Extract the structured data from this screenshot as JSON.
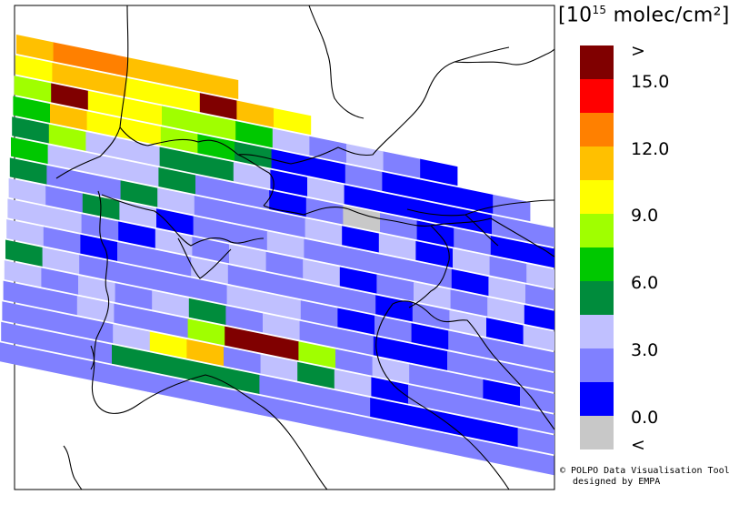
{
  "legend": {
    "unit_open": "[10",
    "unit_exp": "15",
    "unit_close": " molec/cm²]",
    "upper_marker": ">",
    "lower_marker": "<",
    "ticks": [
      "15.0",
      "12.0",
      "9.0",
      "6.0",
      "3.0",
      "0.0"
    ],
    "colors": [
      "#800000",
      "#ff0000",
      "#ff8000",
      "#ffc000",
      "#ffff00",
      "#a0ff00",
      "#00c800",
      "#008c3c",
      "#c0c0ff",
      "#8080ff",
      "#0000ff",
      "#c8c8c8"
    ]
  },
  "credit": {
    "line1": "© POLPO Data Visualisation Tool",
    "line2": "designed by EMPA"
  },
  "swath": {
    "rows": [
      [
        3,
        2,
        2,
        3,
        3,
        3
      ],
      [
        4,
        3,
        3,
        4,
        4,
        0,
        3,
        4
      ],
      [
        5,
        0,
        4,
        4,
        5,
        5,
        6,
        8,
        9,
        8,
        9,
        10
      ],
      [
        6,
        3,
        4,
        4,
        5,
        6,
        7,
        10,
        10,
        9,
        10,
        10,
        10,
        9
      ],
      [
        7,
        5,
        8,
        8,
        7,
        7,
        8,
        10,
        8,
        10,
        10,
        10,
        10,
        9,
        9
      ],
      [
        6,
        8,
        8,
        8,
        7,
        9,
        9,
        10,
        9,
        11,
        9,
        10,
        9,
        10,
        10
      ],
      [
        7,
        9,
        9,
        7,
        8,
        9,
        9,
        9,
        8,
        10,
        8,
        10,
        8,
        9,
        8
      ],
      [
        8,
        9,
        7,
        8,
        10,
        9,
        9,
        8,
        9,
        9,
        9,
        9,
        10,
        8,
        9
      ],
      [
        8,
        8,
        9,
        10,
        8,
        9,
        8,
        9,
        8,
        10,
        9,
        8,
        9,
        8,
        10
      ],
      [
        8,
        9,
        10,
        9,
        9,
        8,
        9,
        9,
        9,
        9,
        10,
        9,
        8,
        10,
        8
      ],
      [
        7,
        8,
        9,
        9,
        9,
        9,
        8,
        8,
        9,
        10,
        9,
        10,
        9,
        9,
        9
      ],
      [
        8,
        9,
        8,
        9,
        8,
        7,
        9,
        8,
        9,
        9,
        10,
        10,
        9,
        9,
        9
      ],
      [
        9,
        9,
        8,
        9,
        9,
        5,
        0,
        0,
        5,
        9,
        8,
        9,
        9,
        10,
        9
      ],
      [
        9,
        9,
        9,
        8,
        4,
        3,
        9,
        8,
        7,
        8,
        10,
        9,
        9,
        9,
        9
      ],
      [
        9,
        9,
        9,
        7,
        7,
        7,
        7,
        9,
        9,
        9,
        10,
        10,
        10,
        10,
        9
      ],
      [
        9,
        9,
        9,
        9,
        9,
        9,
        9,
        9,
        9,
        9,
        9,
        9,
        9,
        9,
        9
      ]
    ]
  }
}
